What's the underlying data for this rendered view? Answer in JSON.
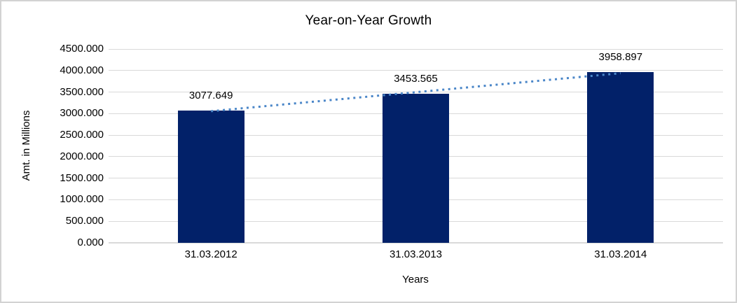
{
  "chart_data": {
    "type": "bar",
    "title": "Year-on-Year Growth",
    "xlabel": "Years",
    "ylabel": "Amt. in Millions",
    "categories": [
      "31.03.2012",
      "31.03.2013",
      "31.03.2014"
    ],
    "values": [
      3077.649,
      3453.565,
      3958.897
    ],
    "value_labels": [
      "3077.649",
      "3453.565",
      "3958.897"
    ],
    "y_tick_values": [
      0,
      500,
      1000,
      1500,
      2000,
      2500,
      3000,
      3500,
      4000,
      4500
    ],
    "y_tick_labels": [
      "0.000",
      "500.000",
      "1000.000",
      "1500.000",
      "2000.000",
      "2500.000",
      "3000.000",
      "3500.000",
      "4000.000",
      "4500.000"
    ],
    "ylim": [
      0,
      4500
    ],
    "grid": true,
    "legend": "none",
    "trendline": {
      "type": "linear",
      "style": "dotted"
    },
    "colors": {
      "bar": "#022169",
      "trendline": "#4a86c8",
      "gridline": "#d9d9d9",
      "axis_line": "#d9d9d9",
      "text": "#000000",
      "frame_border": "#d2d2d2"
    }
  }
}
